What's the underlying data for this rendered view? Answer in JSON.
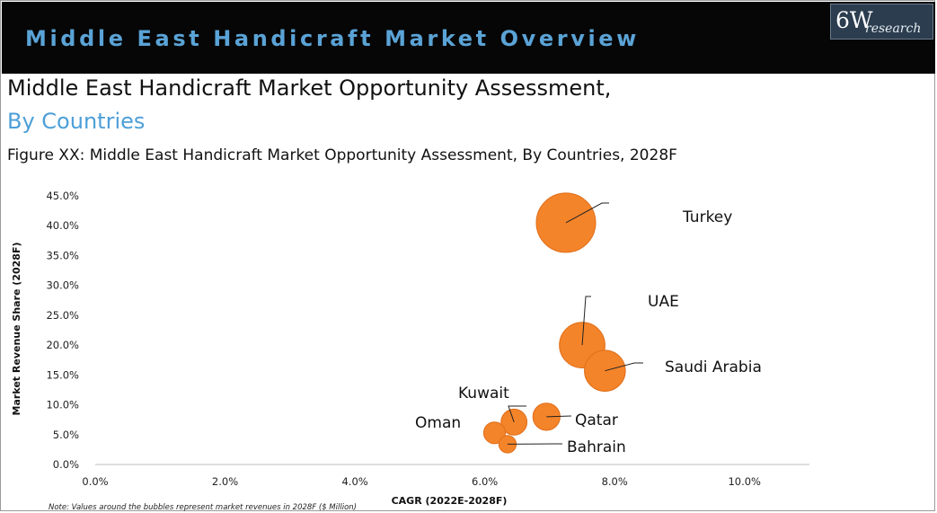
{
  "header": {
    "banner_title": "Middle East Handicraft Market Overview",
    "logo_main": "6W",
    "logo_sub": "research"
  },
  "heading": "Middle East Handicraft Market Opportunity Assessment,",
  "subheading": "By Countries",
  "figure_caption": "Figure XX: Middle East Handicraft Market Opportunity Assessment, By Countries, 2028F",
  "note": "Note: Values around the bubbles represent market revenues in 2028F ($ Million)",
  "colors": {
    "banner_bg": "#060606",
    "banner_text": "#5aa3d6",
    "subheading": "#4d9fd8",
    "bubble": "#f4842a",
    "bubble_stroke": "#e06d17"
  },
  "chart_data": {
    "type": "bubble",
    "xlabel": "CAGR (2022E-2028F)",
    "ylabel": "Market Revenue Share (2028F)",
    "x_ticks": [
      "0.0%",
      "2.0%",
      "4.0%",
      "6.0%",
      "8.0%",
      "10.0%"
    ],
    "y_ticks": [
      "0.0%",
      "5.0%",
      "10.0%",
      "15.0%",
      "20.0%",
      "25.0%",
      "30.0%",
      "35.0%",
      "40.0%",
      "45.0%"
    ],
    "xlim": [
      0,
      11
    ],
    "ylim": [
      0,
      45
    ],
    "grid": false,
    "points": [
      {
        "label": "Turkey",
        "x": 7.25,
        "y": 40.5,
        "size": 10.5
      },
      {
        "label": "UAE",
        "x": 7.5,
        "y": 20.0,
        "size": 6.2
      },
      {
        "label": "Saudi Arabia",
        "x": 7.85,
        "y": 15.7,
        "size": 5.0
      },
      {
        "label": "Qatar",
        "x": 6.95,
        "y": 8.0,
        "size": 2.2
      },
      {
        "label": "Kuwait",
        "x": 6.45,
        "y": 7.1,
        "size": 2.0
      },
      {
        "label": "Oman",
        "x": 6.15,
        "y": 5.3,
        "size": 1.4
      },
      {
        "label": "Bahrain",
        "x": 6.35,
        "y": 3.4,
        "size": 0.9
      }
    ]
  }
}
